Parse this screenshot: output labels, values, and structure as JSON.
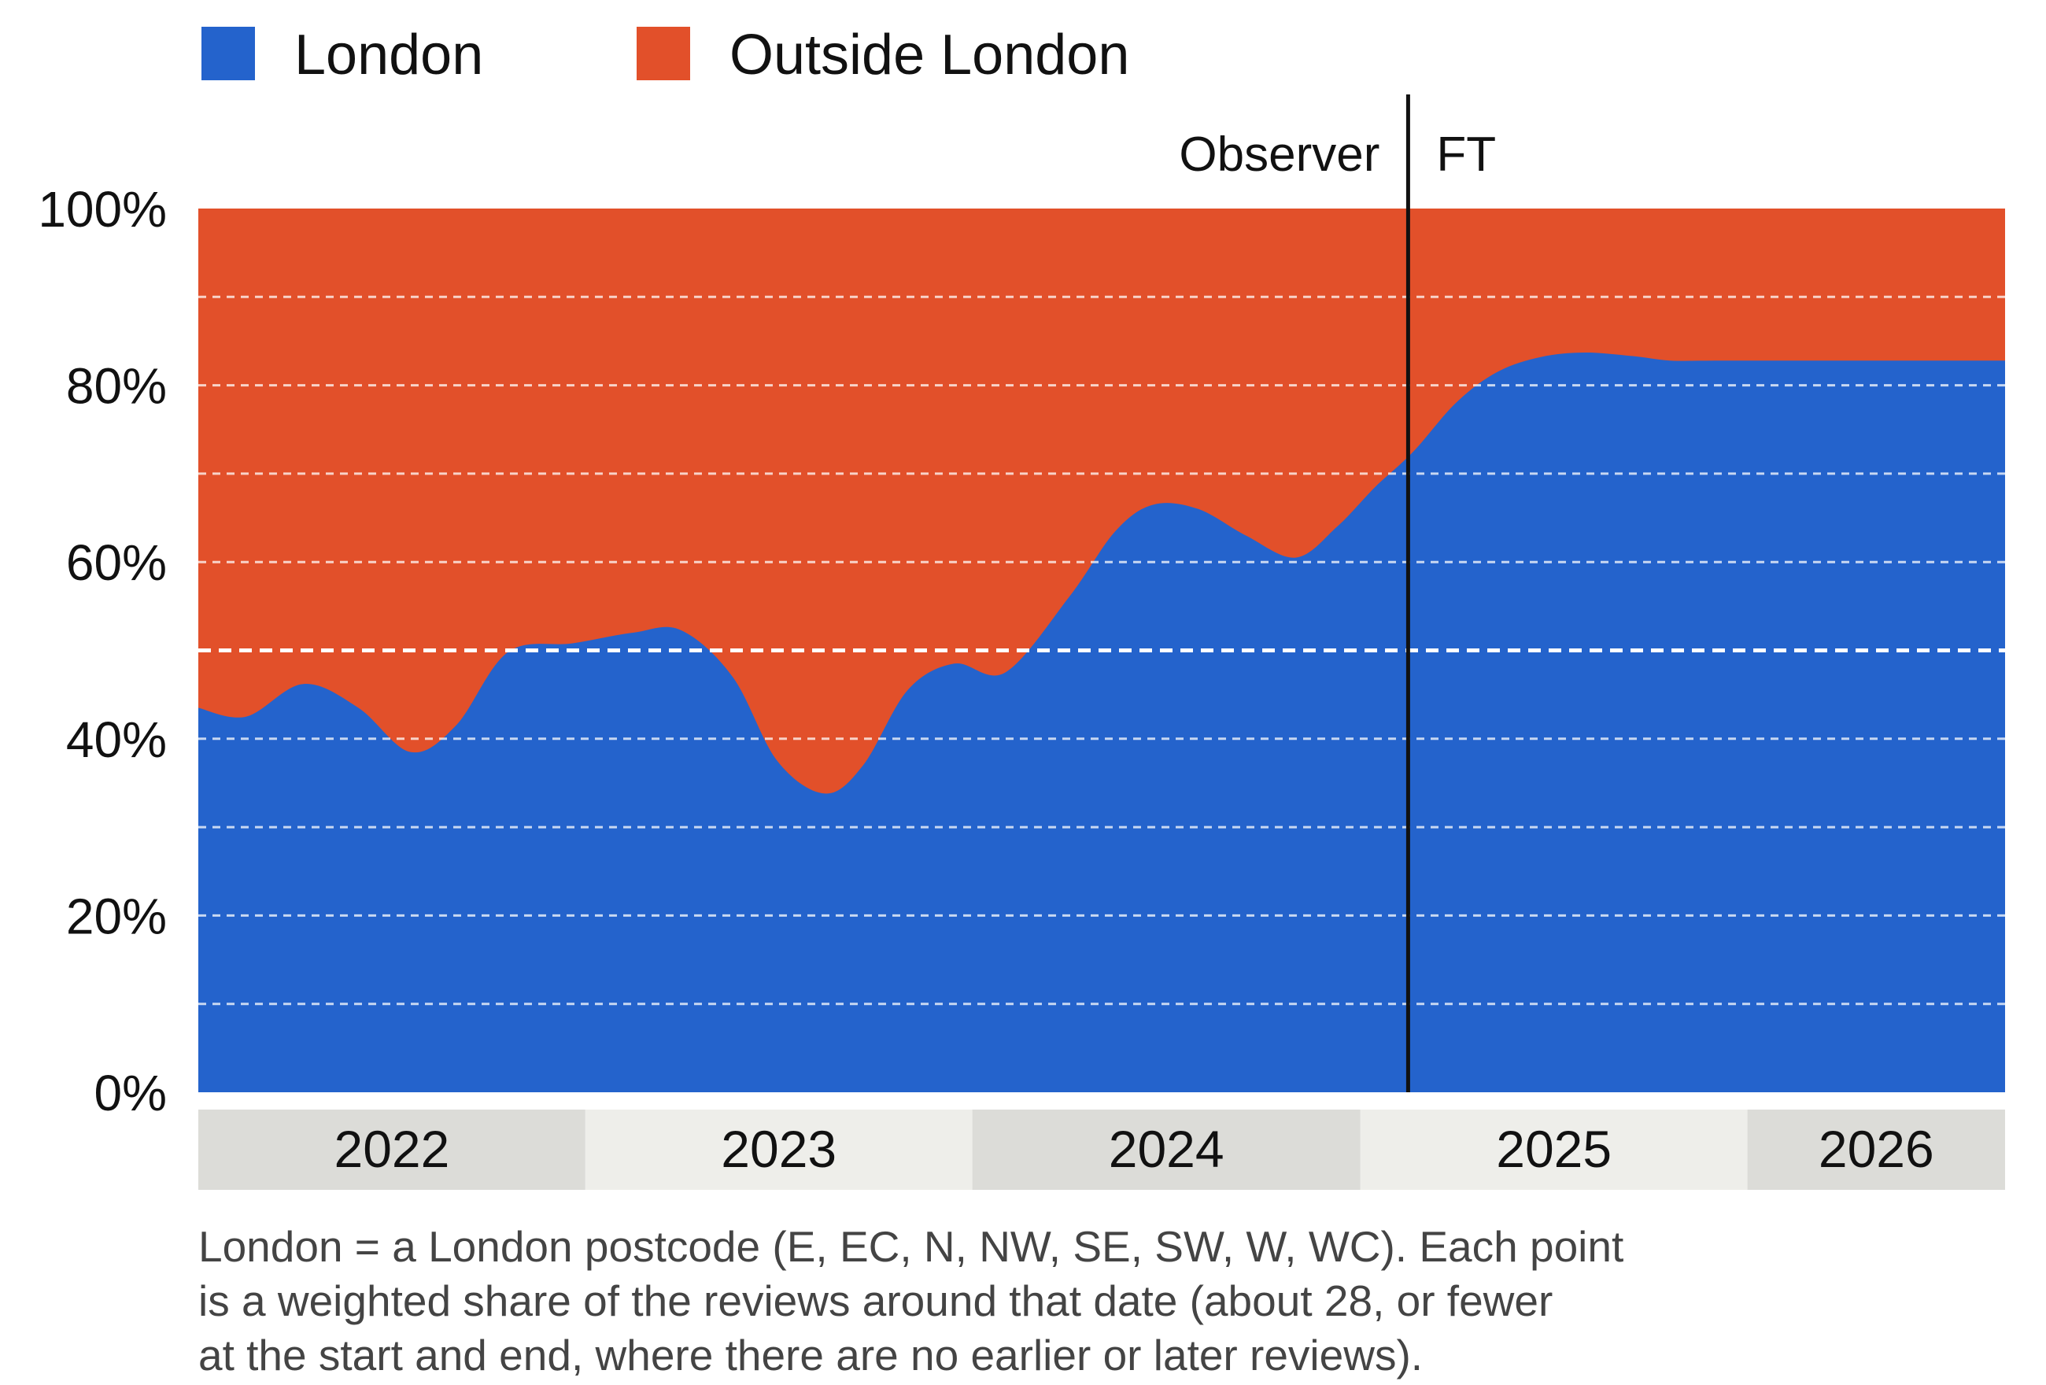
{
  "chart_data": {
    "type": "area",
    "stacked": true,
    "normalized": true,
    "legend": {
      "position": "top-left",
      "entries": [
        {
          "name": "London",
          "color": "#2463CC"
        },
        {
          "name": "Outside London",
          "color": "#E2502A"
        }
      ]
    },
    "series": [
      {
        "name": "London",
        "color": "#2463CC"
      },
      {
        "name": "Outside London",
        "color": "#E2502A"
      }
    ],
    "x_range": [
      "2022-01-01",
      "2026-09-01"
    ],
    "x": [
      "2022-01-01",
      "2022-02-15",
      "2022-04-10",
      "2022-06-01",
      "2022-07-20",
      "2022-09-01",
      "2022-10-20",
      "2022-12-20",
      "2023-02-15",
      "2023-04-01",
      "2023-05-20",
      "2023-07-01",
      "2023-08-15",
      "2023-09-20",
      "2023-11-01",
      "2023-12-15",
      "2024-02-01",
      "2024-04-01",
      "2024-05-15",
      "2024-06-20",
      "2024-08-01",
      "2024-09-15",
      "2024-11-01",
      "2024-12-10",
      "2025-01-15",
      "2025-02-20",
      "2025-04-01",
      "2025-05-10",
      "2025-06-20",
      "2025-08-01",
      "2025-09-15",
      "2025-10-20",
      "2025-12-01",
      "2026-01-15",
      "2026-03-01",
      "2026-04-20",
      "2026-06-01",
      "2026-07-15",
      "2026-09-01"
    ],
    "series_values": {
      "London": [
        43.5,
        42.5,
        46.2,
        43.5,
        38.5,
        41.5,
        49.8,
        50.8,
        52.0,
        52.3,
        47.0,
        37.5,
        33.8,
        37.0,
        45.5,
        48.5,
        47.5,
        56.0,
        63.5,
        66.5,
        66.0,
        63.0,
        60.5,
        64.0,
        68.5,
        72.5,
        78.0,
        81.5,
        83.2,
        83.7,
        83.3,
        82.8,
        82.8,
        82.8,
        82.8,
        82.8,
        82.8,
        82.8,
        82.8
      ]
    },
    "y_ticks": [
      "0%",
      "20%",
      "40%",
      "60%",
      "80%",
      "100%"
    ],
    "y_range": [
      0,
      100
    ],
    "y_unit": "%",
    "grid": true,
    "minor_grid_step": 10,
    "reference_line": {
      "y": 50,
      "style": "dashed"
    },
    "annotation": {
      "x": "2025-02-15",
      "left_label": "Observer",
      "right_label": "FT"
    },
    "year_bands": [
      {
        "label": "2022",
        "start": "2022-01-01",
        "end": "2022-12-31"
      },
      {
        "label": "2023",
        "start": "2023-01-01",
        "end": "2023-12-31"
      },
      {
        "label": "2024",
        "start": "2024-01-01",
        "end": "2024-12-31"
      },
      {
        "label": "2025",
        "start": "2025-01-01",
        "end": "2025-12-31"
      },
      {
        "label": "2026",
        "start": "2026-01-01",
        "end": "2026-09-01"
      }
    ],
    "note_lines": [
      "London = a London postcode (E, EC, N, NW, SE, SW, W, WC). Each point",
      "is a weighted share of the reviews around that date (about 28, or fewer",
      "at the start and end, where there are no earlier or later reviews)."
    ]
  },
  "colors": {
    "london": "#2463CC",
    "outside": "#E2502A",
    "band_dark": "#DCDCD8",
    "band_light": "#EEEEEA",
    "grid": "#FFFFFF",
    "annotation_line": "#111111"
  }
}
